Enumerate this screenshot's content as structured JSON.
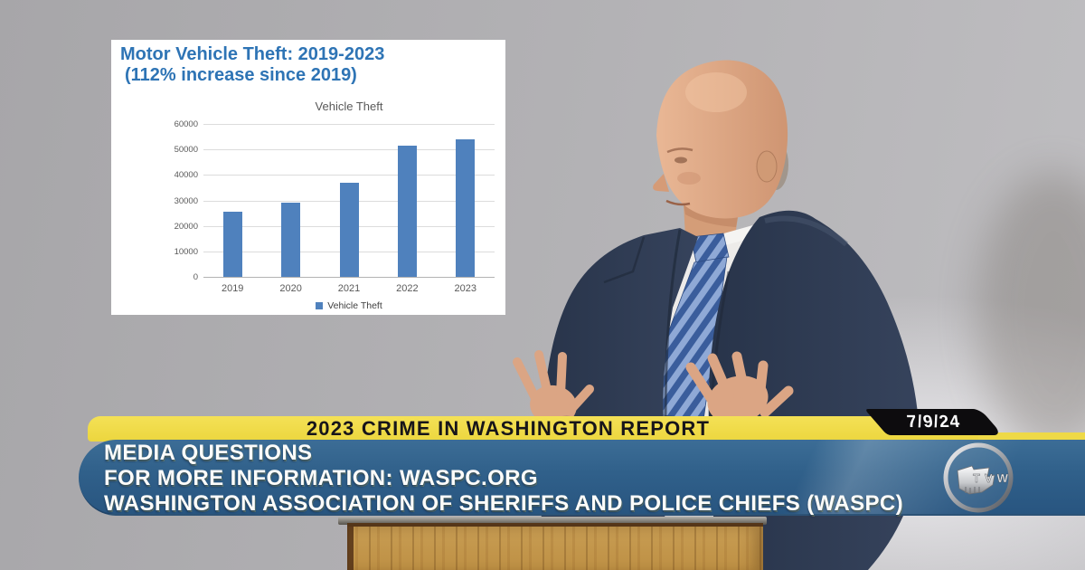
{
  "slide": {
    "title_line1": "Motor Vehicle Theft: 2019-2023",
    "title_line2": "(112% increase since 2019)",
    "title_color": "#2e74b5",
    "background": "#ffffff"
  },
  "chart_data": {
    "type": "bar",
    "title": "Vehicle Theft",
    "categories": [
      "2019",
      "2020",
      "2021",
      "2022",
      "2023"
    ],
    "series": [
      {
        "name": "Vehicle Theft",
        "values": [
          25500,
          29000,
          37000,
          51500,
          54000
        ]
      }
    ],
    "xlabel": "",
    "ylabel": "",
    "ylim": [
      0,
      60000
    ],
    "yticks": [
      0,
      10000,
      20000,
      30000,
      40000,
      50000,
      60000
    ],
    "ytick_labels": [
      "0",
      "10000",
      "20000",
      "30000",
      "40000",
      "50000",
      "60000"
    ],
    "grid": true,
    "legend_label": "Vehicle Theft",
    "legend_position": "bottom",
    "bar_color": "#4f81bd",
    "axis_text_color": "#595959"
  },
  "ticker": {
    "headline": "2023 CRIME IN WASHINGTON REPORT",
    "date": "7/9/24",
    "lines": [
      "MEDIA QUESTIONS",
      "FOR MORE INFORMATION: WASPC.ORG",
      "WASHINGTON ASSOCIATION OF SHERIFFS AND POLICE CHIEFS (WASPC)"
    ],
    "colors": {
      "headline_bar": "#eed947",
      "headline_text": "#17151a",
      "date_box": "#0d0c0e",
      "date_text": "#fcfcfc",
      "banner": "#30608a",
      "banner_text": "#fcfcfa"
    }
  },
  "logo": {
    "text": "TVW"
  }
}
